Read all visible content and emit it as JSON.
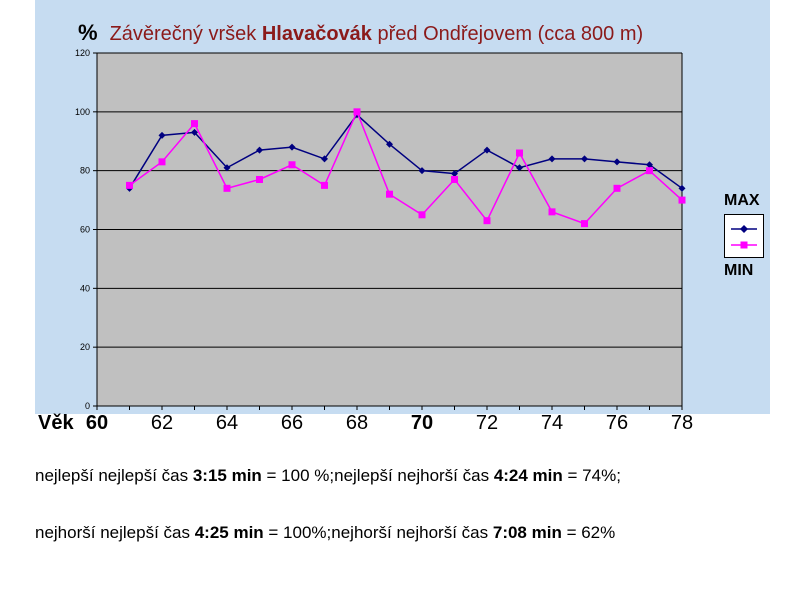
{
  "title": {
    "unit_symbol": "%",
    "text_before": "Závěrečný vršek",
    "text_bold": "Hlavačovák",
    "text_after": "před Ondřejovem (cca 800 m)"
  },
  "x_axis": {
    "label": "Věk",
    "ticks": [
      {
        "value": 60,
        "label": "60",
        "bold": true
      },
      {
        "value": 62,
        "label": "62",
        "bold": false
      },
      {
        "value": 64,
        "label": "64",
        "bold": false
      },
      {
        "value": 66,
        "label": "66",
        "bold": false
      },
      {
        "value": 68,
        "label": "68",
        "bold": false
      },
      {
        "value": 70,
        "label": "70",
        "bold": true
      },
      {
        "value": 72,
        "label": "72",
        "bold": false
      },
      {
        "value": 74,
        "label": "74",
        "bold": false
      },
      {
        "value": 76,
        "label": "76",
        "bold": false
      },
      {
        "value": 78,
        "label": "78",
        "bold": false
      }
    ]
  },
  "legend": {
    "max_label": "MAX",
    "min_label": "MIN"
  },
  "chart_data": {
    "type": "line",
    "title": "Závěrečný vršek Hlavačovák před Ondřejovem (cca 800 m)",
    "xlabel": "Věk",
    "ylabel": "%",
    "xlim": [
      60,
      78
    ],
    "ylim": [
      0,
      120
    ],
    "y_ticks": [
      0,
      20,
      40,
      60,
      80,
      100,
      120
    ],
    "grid": true,
    "legend_position": "right",
    "x": [
      61,
      62,
      63,
      64,
      65,
      66,
      67,
      68,
      69,
      70,
      71,
      72,
      73,
      74,
      75,
      76,
      77,
      78
    ],
    "series": [
      {
        "name": "MAX",
        "color": "#000080",
        "marker": "diamond",
        "values": [
          74,
          92,
          93,
          81,
          87,
          88,
          84,
          99,
          89,
          80,
          79,
          87,
          81,
          84,
          84,
          83,
          82,
          74
        ]
      },
      {
        "name": "MIN",
        "color": "#ff00ff",
        "marker": "square",
        "values": [
          75,
          83,
          96,
          74,
          77,
          82,
          75,
          100,
          72,
          65,
          77,
          63,
          86,
          66,
          62,
          74,
          80,
          70
        ]
      }
    ]
  },
  "notes": [
    {
      "parts": [
        {
          "text": "nejlepší nejlepší čas ",
          "bold": false
        },
        {
          "text": "3:15 min",
          "bold": true
        },
        {
          "text": " = 100 %;nejlepší nejhorší čas ",
          "bold": false
        },
        {
          "text": "4:24 min",
          "bold": true
        },
        {
          "text": " = 74%;",
          "bold": false
        }
      ]
    },
    {
      "parts": [
        {
          "text": "nejhorší nejlepší čas ",
          "bold": false
        },
        {
          "text": "4:25 min",
          "bold": true
        },
        {
          "text": " = 100%;nejhorší nejhorší čas ",
          "bold": false
        },
        {
          "text": "7:08 min",
          "bold": true
        },
        {
          "text": " = 62%",
          "bold": false
        }
      ]
    }
  ]
}
